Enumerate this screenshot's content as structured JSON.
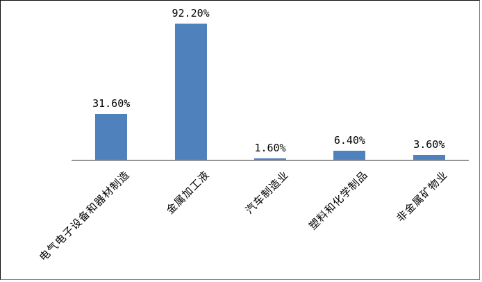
{
  "chart_data": {
    "type": "bar",
    "categories": [
      "电气电子设备和器材制造",
      "金属加工液",
      "汽车制造业",
      "塑料和化学制品",
      "非金属矿物业"
    ],
    "values": [
      31.6,
      92.2,
      1.6,
      6.4,
      3.6
    ],
    "data_labels": [
      "31.60%",
      "92.20%",
      "1.60%",
      "6.40%",
      "3.60%"
    ],
    "title": "",
    "xlabel": "",
    "ylabel": "",
    "ylim": [
      0,
      100
    ],
    "grid": false,
    "legend": "none",
    "bar_color": "#4F81BD",
    "axis_line_color": "#949494",
    "background_color": "#FFFFFF",
    "frame_border_dark": "#0D0D0D",
    "frame_border_light": "#808080",
    "label_text_color": "#000000"
  }
}
